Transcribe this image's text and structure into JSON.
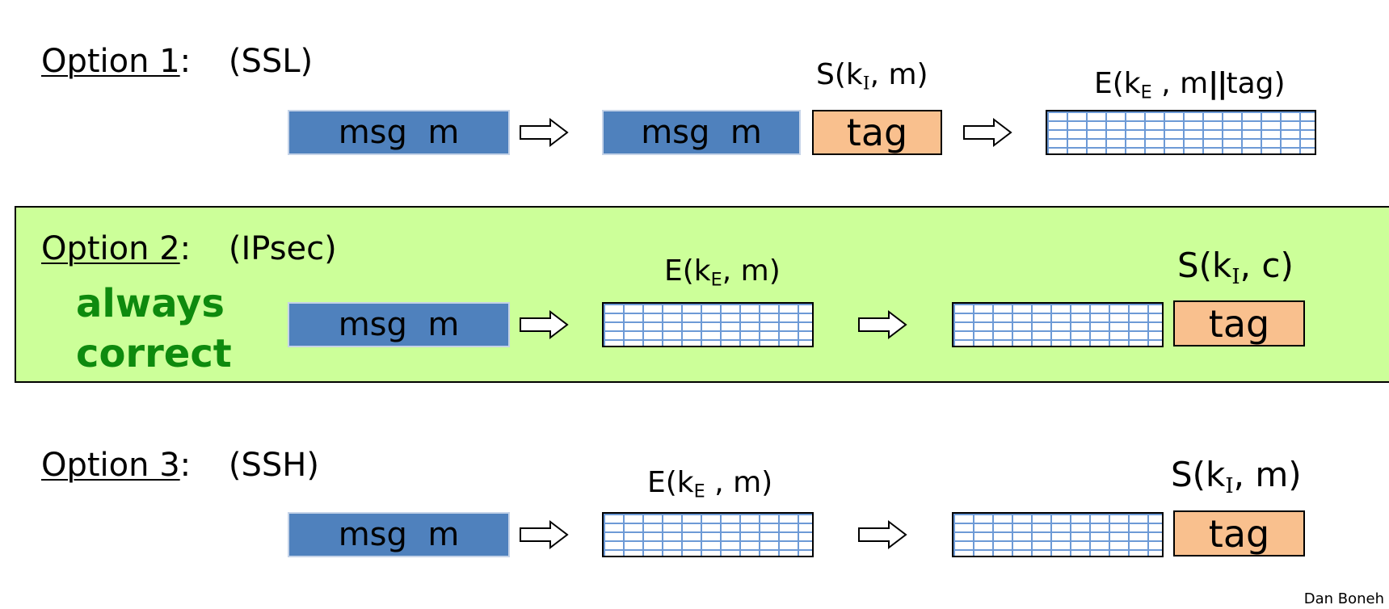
{
  "option1": {
    "label": "Option 1",
    "colon": ":",
    "paren": "(SSL)",
    "msg1": "msg  m",
    "msg2": "msg  m",
    "tag": "tag",
    "sign_label": {
      "prefix": "S(k",
      "sub": "I",
      "suffix": ", m)"
    },
    "enc_label": {
      "prefix": "E(k",
      "sub": "E",
      "mid": " , m",
      "bars": "||",
      "suffix": "tag)"
    }
  },
  "option2": {
    "label": "Option 2",
    "colon": ":",
    "paren": "(IPsec)",
    "annotation_line1": "always",
    "annotation_line2": "correct",
    "msg": "msg  m",
    "tag": "tag",
    "enc_label": {
      "prefix": "E(k",
      "sub": "E",
      "suffix": ", m)"
    },
    "sign_label": {
      "prefix": "S(k",
      "sub": "I",
      "suffix": ", c)"
    }
  },
  "option3": {
    "label": "Option 3",
    "colon": ":",
    "paren": "(SSH)",
    "msg": "msg  m",
    "tag": "tag",
    "enc_label": {
      "prefix": "E(k",
      "sub": "E",
      "suffix": " , m)"
    },
    "sign_label": {
      "prefix": "S(k",
      "sub": "I",
      "suffix": ", m)"
    }
  },
  "footer": {
    "author": "Dan Boneh"
  },
  "colors": {
    "message_fill": "#4f81bd",
    "tag_fill": "#f9c08e",
    "band_fill": "#ccff99",
    "annotation_text": "#0e8a0e",
    "brick_line": "#6d9ad6"
  },
  "icons": [
    "right-arrow-icon"
  ]
}
